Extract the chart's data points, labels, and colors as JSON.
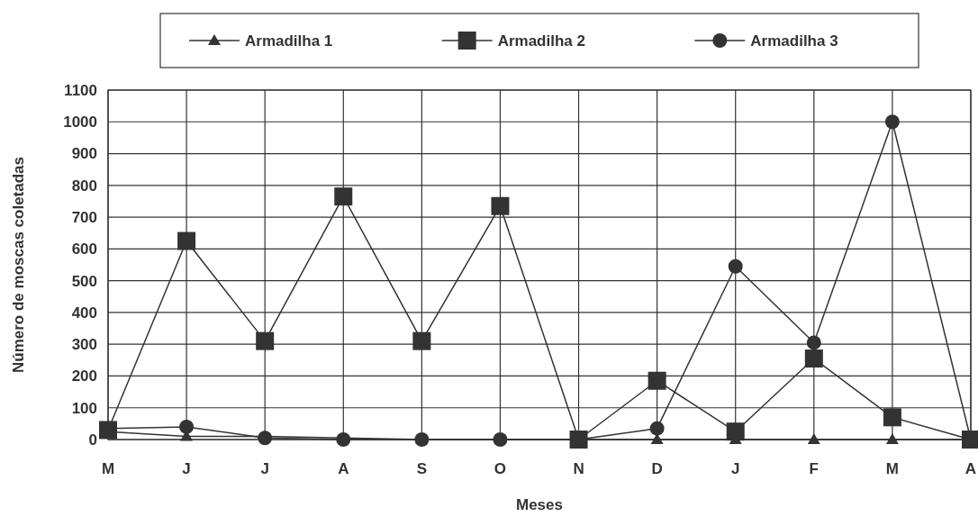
{
  "chart_data": {
    "type": "line",
    "xlabel": "Meses",
    "ylabel": "Número de moscas coletadas",
    "categories": [
      "M",
      "J",
      "J",
      "A",
      "S",
      "O",
      "N",
      "D",
      "J",
      "F",
      "M",
      "A"
    ],
    "series": [
      {
        "name": "Armadilha 1",
        "color": "#333333",
        "marker": "triangle",
        "values": [
          25,
          10,
          10,
          5,
          0,
          0,
          0,
          0,
          0,
          0,
          0,
          0
        ]
      },
      {
        "name": "Armadilha 2",
        "color": "#333333",
        "marker": "square",
        "values": [
          30,
          625,
          310,
          765,
          310,
          735,
          0,
          185,
          25,
          255,
          70,
          0
        ]
      },
      {
        "name": "Armadilha 3",
        "color": "#333333",
        "marker": "circle",
        "values": [
          35,
          40,
          5,
          0,
          0,
          0,
          0,
          35,
          545,
          305,
          1000,
          0
        ]
      }
    ],
    "ylim": [
      0,
      1100
    ],
    "yticks": [
      0,
      100,
      200,
      300,
      400,
      500,
      600,
      700,
      800,
      900,
      1000,
      1100
    ],
    "grid": true,
    "legend": "top",
    "line_style": "solid"
  }
}
